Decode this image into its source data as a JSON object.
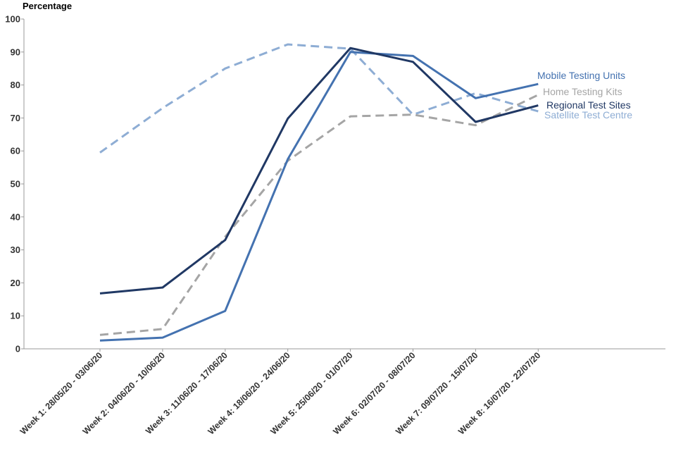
{
  "chart_data": {
    "type": "line",
    "title": "",
    "ylabel": "Percentage",
    "xlabel": "",
    "ylim": [
      0,
      100
    ],
    "yticks": [
      0,
      10,
      20,
      30,
      40,
      50,
      60,
      70,
      80,
      90,
      100
    ],
    "categories": [
      "Week 1: 28/05/20 - 03/06/20",
      "Week 2: 04/06/20 - 10/06/20",
      "Week 3: 11/06/20 - 17/06/20",
      "Week 4: 18/06/20 - 24/06/20",
      "Week 5: 25/06/20 - 01/07/20",
      "Week 6: 02/07/20 - 08/07/20",
      "Week 7: 09/07/20 - 15/07/20",
      "Week 8: 16/07/20 - 22/07/20"
    ],
    "series": [
      {
        "name": "Satellite Test Centre",
        "color": "#8eadd4",
        "dash": "dashed",
        "values": [
          59.5,
          73,
          85,
          92.3,
          91,
          71,
          77.5,
          72
        ]
      },
      {
        "name": "Home Testing Kits",
        "color": "#a5a5a5",
        "dash": "dashed",
        "values": [
          4.2,
          6,
          34,
          57,
          70.5,
          71,
          67.8,
          77
        ]
      },
      {
        "name": "Mobile Testing Units",
        "color": "#4472b0",
        "dash": "solid",
        "values": [
          2.5,
          3.4,
          11.5,
          57.5,
          90,
          88.8,
          76,
          80.3
        ]
      },
      {
        "name": "Regional Test Sites",
        "color": "#203864",
        "dash": "solid",
        "values": [
          16.8,
          18.6,
          33,
          69.8,
          91.2,
          87,
          68.8,
          73.8
        ]
      }
    ],
    "legend": "right, labels at line ends"
  }
}
